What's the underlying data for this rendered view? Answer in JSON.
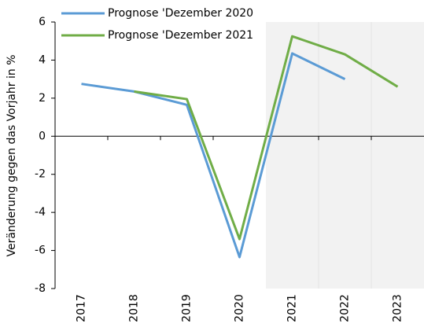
{
  "chart_data": {
    "type": "line",
    "y_label": "Veränderung gegen das Vorjahr in %",
    "categories": [
      "2017",
      "2018",
      "2019",
      "2020",
      "2021",
      "2022",
      "2023"
    ],
    "series": [
      {
        "name": "Prognose 'Dezember 2020",
        "color": "#5b9bd5",
        "values": [
          2.75,
          2.35,
          1.65,
          -6.35,
          4.35,
          3.0,
          null
        ]
      },
      {
        "name": "Prognose 'Dezember 2021",
        "color": "#70ad47",
        "values": [
          null,
          2.35,
          1.95,
          -5.4,
          5.25,
          4.3,
          2.6
        ]
      }
    ],
    "ylim": [
      -8,
      6
    ],
    "yticks": [
      -8,
      -6,
      -4,
      -2,
      0,
      2,
      4,
      6
    ],
    "grid": false
  }
}
